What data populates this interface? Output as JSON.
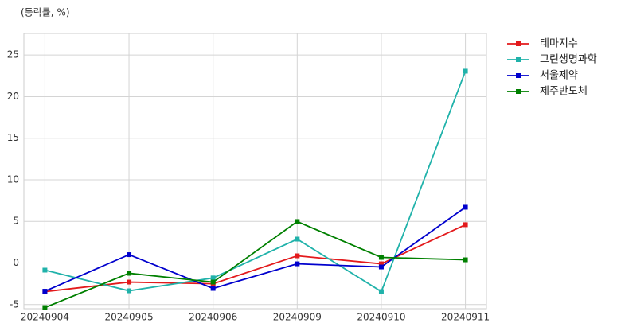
{
  "chart_data": {
    "type": "line",
    "y_label": "(등락률, %)",
    "categories": [
      "20240904",
      "20240905",
      "20240906",
      "20240909",
      "20240910",
      "20240911"
    ],
    "series": [
      {
        "name": "테마지수",
        "color": "#e31a1c",
        "values": [
          -3.45,
          -2.3,
          -2.5,
          0.86,
          -0.1,
          4.6
        ]
      },
      {
        "name": "그린생명과학",
        "color": "#20b2aa",
        "values": [
          -0.86,
          -3.35,
          -1.8,
          2.87,
          -3.45,
          23.06
        ]
      },
      {
        "name": "서울제약",
        "color": "#0000cd",
        "values": [
          -3.4,
          1.0,
          -3.06,
          -0.1,
          -0.48,
          6.7
        ]
      },
      {
        "name": "제주반도체",
        "color": "#008000",
        "values": [
          -5.36,
          -1.24,
          -2.3,
          4.98,
          0.67,
          0.38
        ]
      }
    ],
    "ylim": [
      -5.5,
      27.6
    ],
    "yticks": [
      -5,
      0,
      5,
      10,
      15,
      20,
      25
    ],
    "grid": true,
    "legend": "outside upper right"
  }
}
